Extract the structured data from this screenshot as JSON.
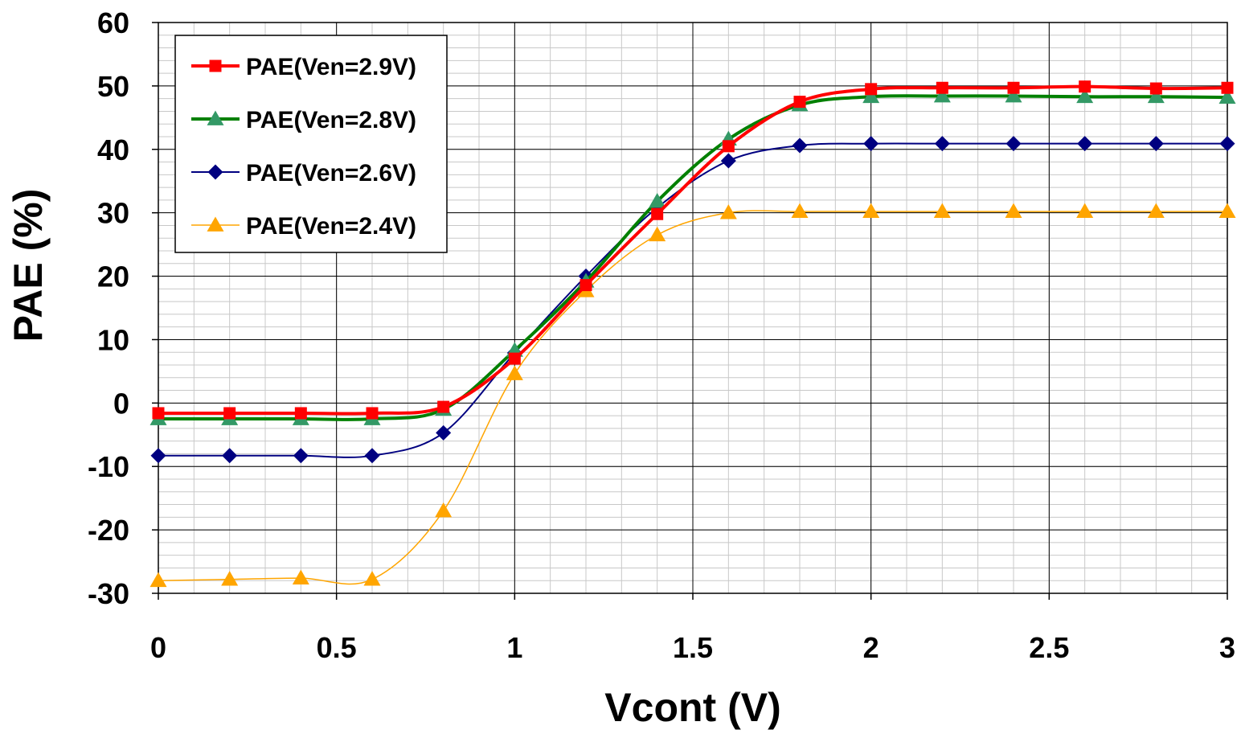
{
  "chart_data": {
    "type": "line",
    "title": "",
    "xlabel": "Vcont (V)",
    "ylabel": "PAE (%)",
    "xlim": [
      0,
      3
    ],
    "ylim": [
      -30,
      60
    ],
    "x_ticks": [
      "0",
      "0.5",
      "1",
      "1.5",
      "2",
      "2.5",
      "3"
    ],
    "y_ticks": [
      "-30",
      "-20",
      "-10",
      "0",
      "10",
      "20",
      "30",
      "40",
      "50",
      "60"
    ],
    "grid": true,
    "legend_position": "top-left",
    "x": [
      0,
      0.2,
      0.4,
      0.6,
      0.8,
      1.0,
      1.2,
      1.4,
      1.6,
      1.8,
      2.0,
      2.2,
      2.4,
      2.6,
      2.8,
      3.0
    ],
    "series": [
      {
        "name": "PAE(Ven=2.9V)",
        "color": "#ff0000",
        "marker": "square",
        "line_width": 4,
        "values": [
          -1.6,
          -1.6,
          -1.6,
          -1.6,
          -0.6,
          7.0,
          18.6,
          29.8,
          40.5,
          47.5,
          49.5,
          49.7,
          49.7,
          49.9,
          49.6,
          49.7
        ]
      },
      {
        "name": "PAE(Ven=2.8V)",
        "color": "#008000",
        "marker": "triangle",
        "marker_color": "#339966",
        "line_width": 4,
        "values": [
          -2.5,
          -2.5,
          -2.5,
          -2.5,
          -1.0,
          8.3,
          19.2,
          31.8,
          41.6,
          47.0,
          48.3,
          48.4,
          48.4,
          48.3,
          48.3,
          48.2
        ]
      },
      {
        "name": "PAE(Ven=2.6V)",
        "color": "#000080",
        "marker": "diamond",
        "line_width": 2,
        "values": [
          -8.3,
          -8.3,
          -8.3,
          -8.3,
          -4.7,
          7.9,
          20.0,
          30.8,
          38.2,
          40.6,
          40.9,
          40.9,
          40.9,
          40.9,
          40.9,
          40.9
        ]
      },
      {
        "name": "PAE(Ven=2.4V)",
        "color": "#ffa500",
        "marker": "triangle",
        "line_width": 1.5,
        "values": [
          -28.0,
          -27.8,
          -27.6,
          -27.8,
          -17.0,
          4.6,
          17.7,
          26.5,
          30.0,
          30.2,
          30.2,
          30.2,
          30.2,
          30.2,
          30.2,
          30.2
        ]
      }
    ]
  }
}
